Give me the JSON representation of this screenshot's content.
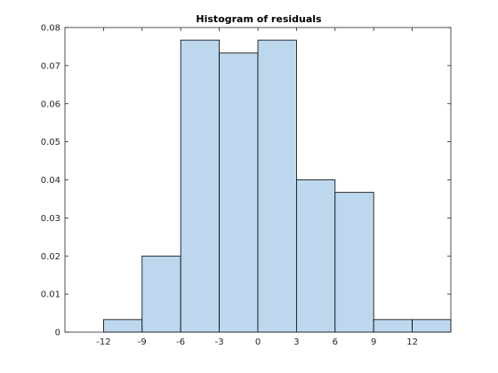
{
  "chart_data": {
    "type": "bar",
    "title": "Histogram of residuals",
    "xlabel": "",
    "ylabel": "",
    "bins": [
      {
        "x0": -12,
        "x1": -9,
        "value": 0.0033
      },
      {
        "x0": -9,
        "x1": -6,
        "value": 0.02
      },
      {
        "x0": -6,
        "x1": -3,
        "value": 0.0767
      },
      {
        "x0": -3,
        "x1": 0,
        "value": 0.0733
      },
      {
        "x0": 0,
        "x1": 3,
        "value": 0.0767
      },
      {
        "x0": 3,
        "x1": 6,
        "value": 0.04
      },
      {
        "x0": 6,
        "x1": 9,
        "value": 0.0367
      },
      {
        "x0": 9,
        "x1": 12,
        "value": 0.0033
      },
      {
        "x0": 12,
        "x1": 15,
        "value": 0.0033
      }
    ],
    "xlim": [
      -15,
      15
    ],
    "ylim": [
      0,
      0.08
    ],
    "xticks": [
      -12,
      -9,
      -6,
      -3,
      0,
      3,
      6,
      9,
      12
    ],
    "yticks": [
      0,
      0.01,
      0.02,
      0.03,
      0.04,
      0.05,
      0.06,
      0.07,
      0.08
    ],
    "ytick_labels": [
      "0",
      "0.01",
      "0.02",
      "0.03",
      "0.04",
      "0.05",
      "0.06",
      "0.07",
      "0.08"
    ],
    "grid": false,
    "legend": "none",
    "colors": {
      "bar_fill": "#bdd7ee",
      "bar_edge": "#000000",
      "axes": "#262626"
    }
  }
}
